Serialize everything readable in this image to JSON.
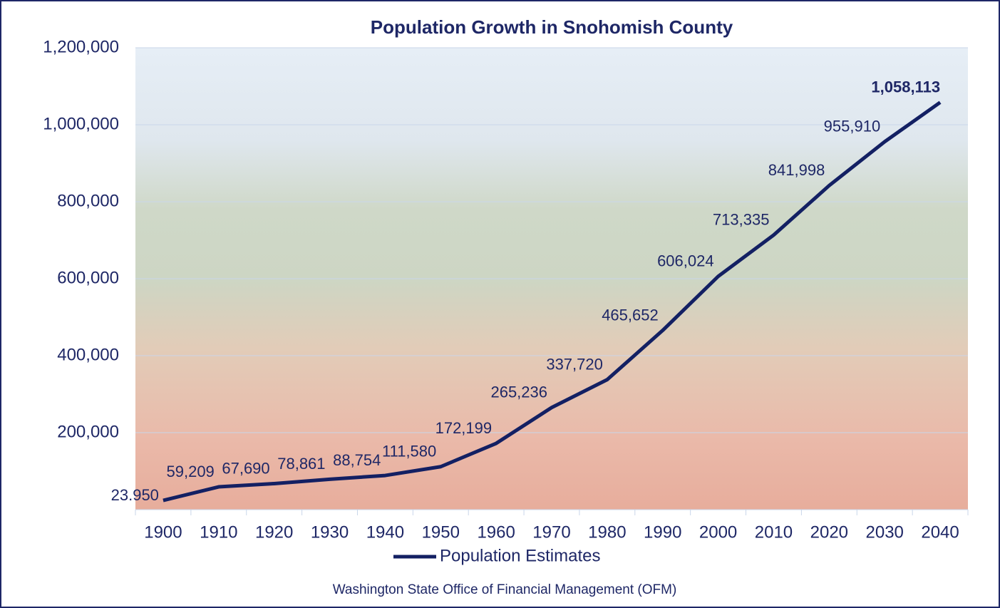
{
  "chart_data": {
    "type": "line",
    "title": "Population Growth in Snohomish County",
    "categories": [
      "1900",
      "1910",
      "1920",
      "1930",
      "1940",
      "1950",
      "1960",
      "1970",
      "1980",
      "1990",
      "2000",
      "2010",
      "2020",
      "2030",
      "2040"
    ],
    "series": [
      {
        "name": "Population Estimates",
        "color": "#132063",
        "values": [
          23950,
          59209,
          67690,
          78861,
          88754,
          111580,
          172199,
          265236,
          337720,
          465652,
          606024,
          713335,
          841998,
          955910,
          1058113
        ],
        "value_labels": [
          "23.950",
          "59,209",
          "67,690",
          "78,861",
          "88,754",
          "111,580",
          "172,199",
          "265,236",
          "337,720",
          "465,652",
          "606,024",
          "713,335",
          "841,998",
          "955,910",
          "1,058,113"
        ]
      }
    ],
    "ylim": [
      0,
      1200000
    ],
    "yticks": [
      {
        "value": 200000,
        "label": "200,000"
      },
      {
        "value": 400000,
        "label": "400,000"
      },
      {
        "value": 600000,
        "label": "600,000"
      },
      {
        "value": 800000,
        "label": "800,000"
      },
      {
        "value": 1000000,
        "label": "1,000,000"
      },
      {
        "value": 1200000,
        "label": "1,200,000"
      }
    ],
    "grid": true,
    "legend": "bottom",
    "source": "Washington State Office of Financial Management (OFM)"
  }
}
